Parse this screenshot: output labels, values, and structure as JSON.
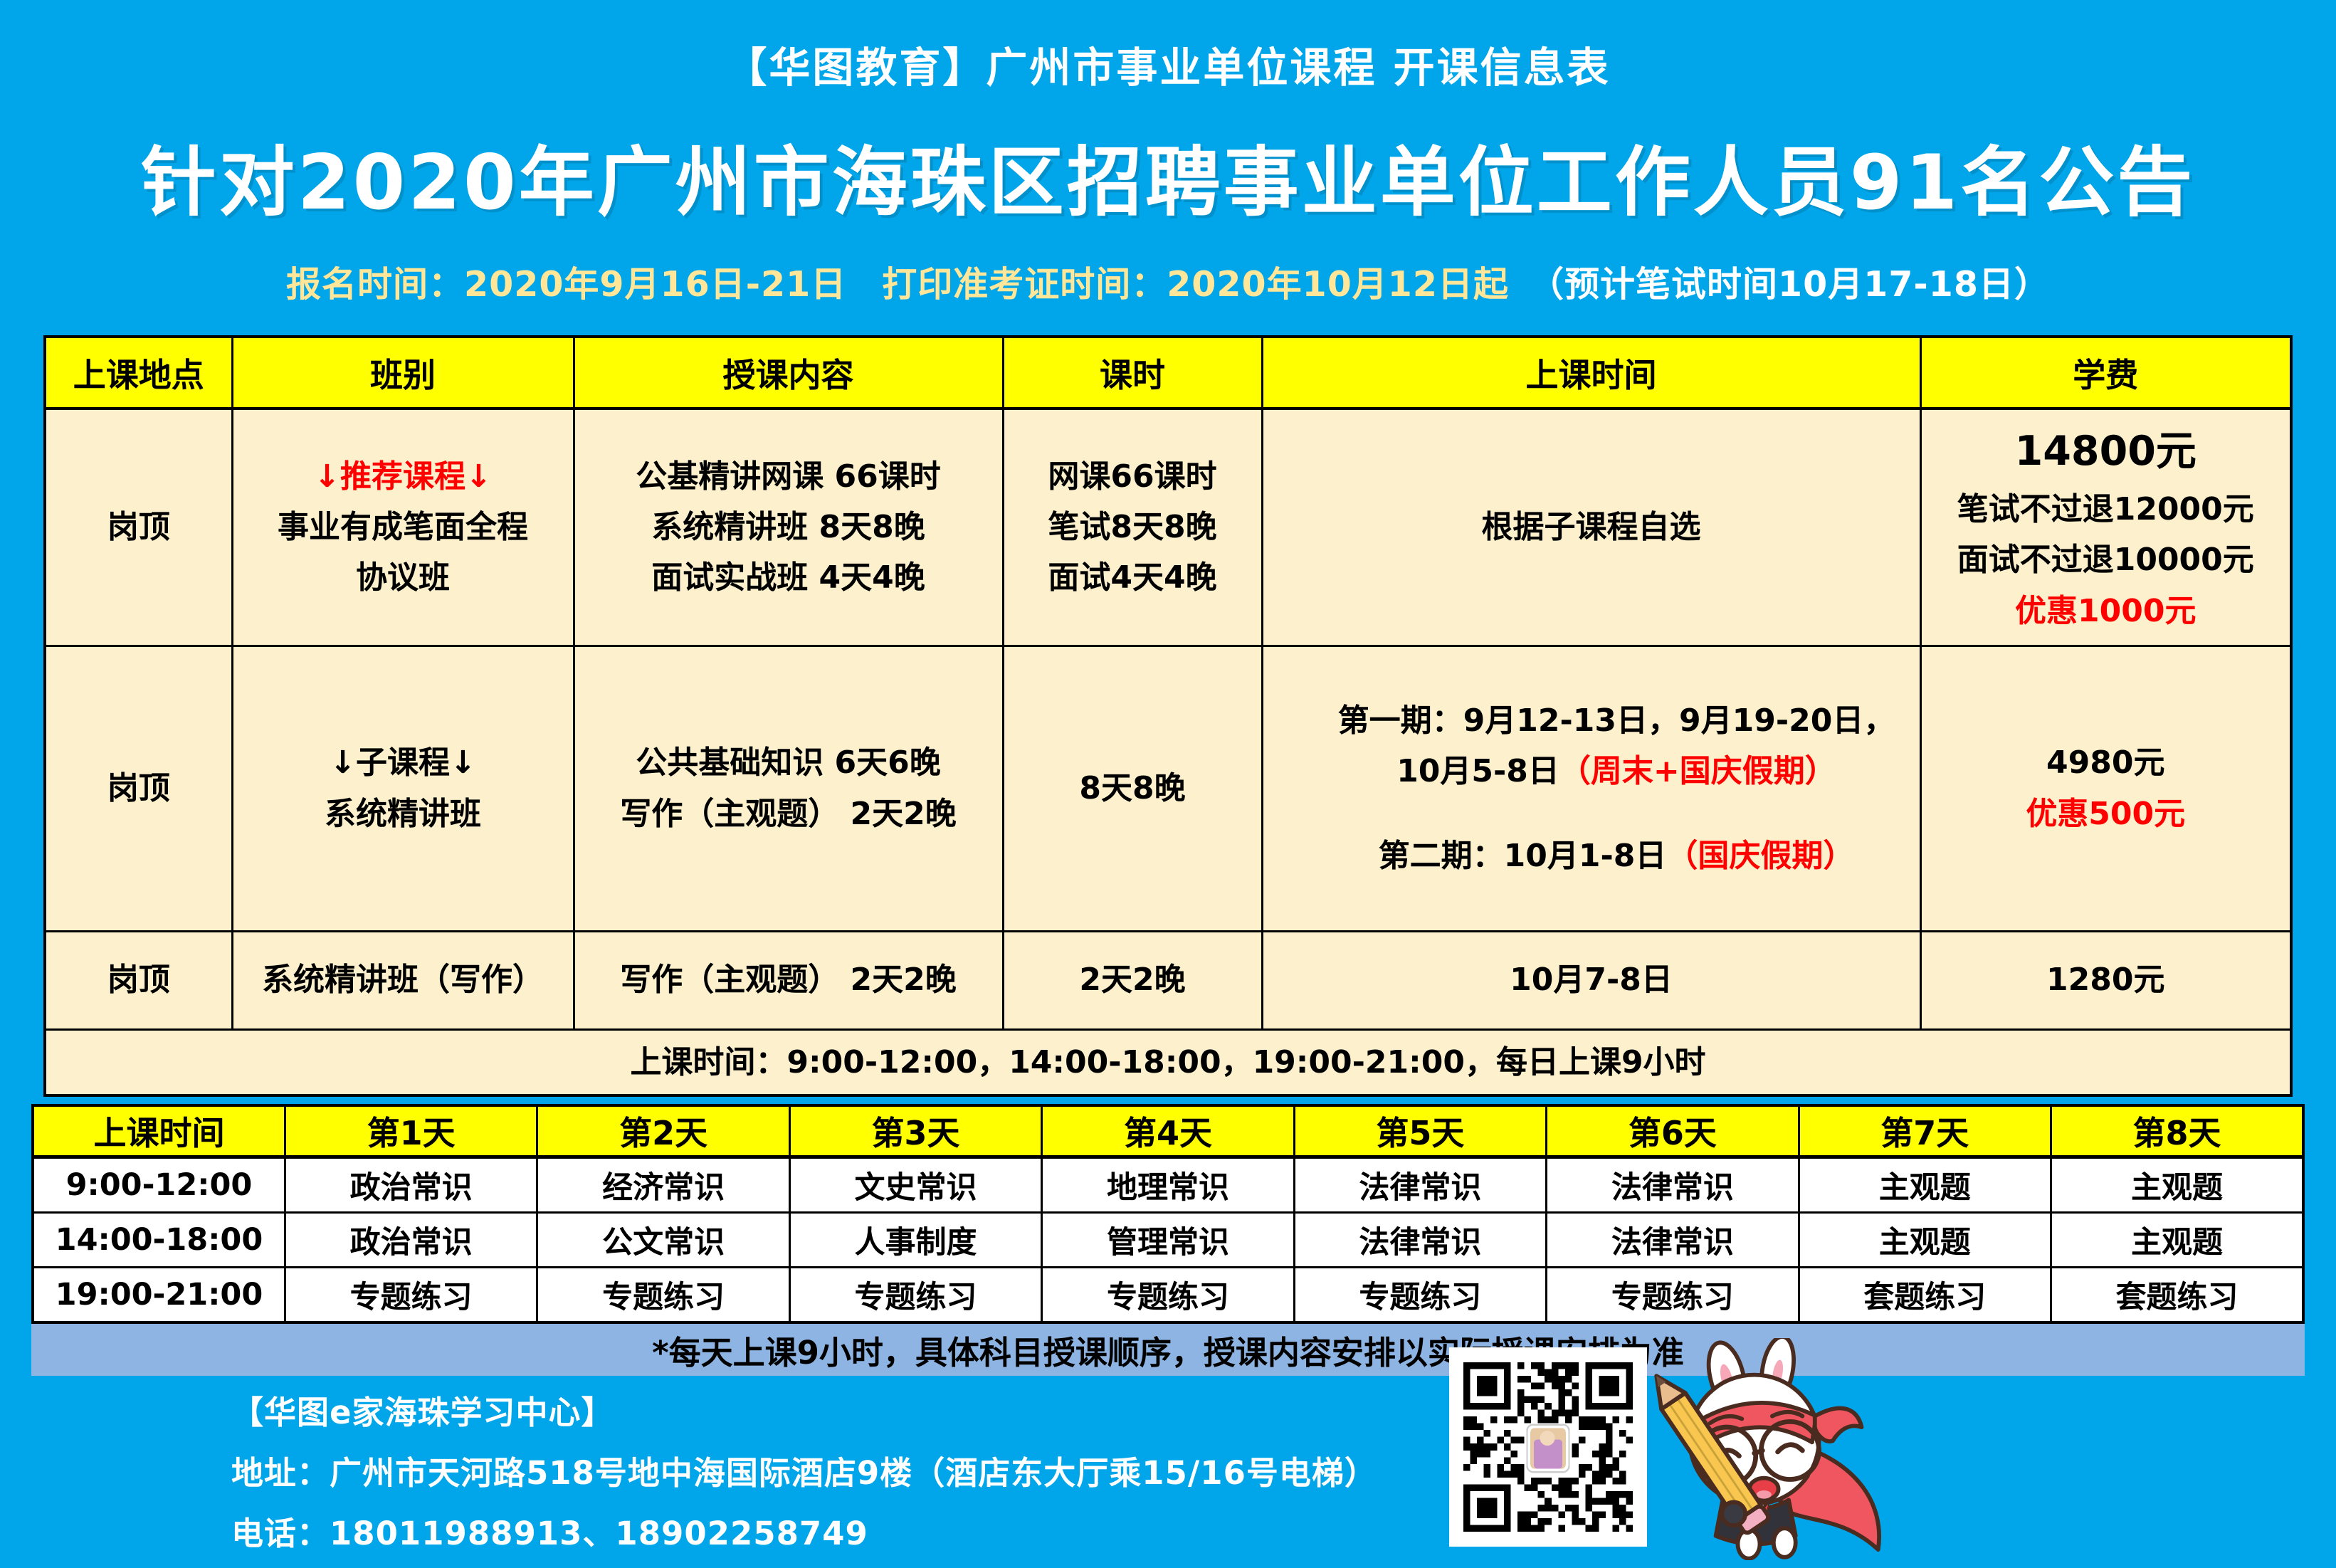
{
  "header": {
    "title_small": "【华图教育】广州市事业单位课程 开课信息表",
    "title_main": "针对2020年广州市海珠区招聘事业单位工作人员91名公告",
    "subtitle_main": "报名时间：2020年9月16日-21日　打印准考证时间：2020年10月12日起",
    "subtitle_note": "（预计笔试时间10月17-18日）"
  },
  "course_table": {
    "headers": [
      "上课地点",
      "班别",
      "授课内容",
      "课时",
      "上课时间",
      "学费"
    ],
    "row1": {
      "location": "岗顶",
      "class_line1": "↓推荐课程↓",
      "class_line2": "事业有成笔面全程",
      "class_line3": "协议班",
      "content_line1": "公基精讲网课 66课时",
      "content_line2": "系统精讲班 8天8晚",
      "content_line3": "面试实战班 4天4晚",
      "hours_line1": "网课66课时",
      "hours_line2": "笔试8天8晚",
      "hours_line3": "面试4天4晚",
      "time": "根据子课程自选",
      "fee_line1": "14800元",
      "fee_line2": "笔试不过退12000元",
      "fee_line3": "面试不过退10000元",
      "fee_line4": "优惠1000元"
    },
    "row2": {
      "location": "岗顶",
      "class_line1": "↓子课程↓",
      "class_line2": "系统精讲班",
      "content_line1": "公共基础知识 6天6晚",
      "content_line2": "写作（主观题） 2天2晚",
      "hours": "8天8晚",
      "time_line1": "第一期：9月12-13日，9月19-20日，",
      "time_line2_black": "10月5-8日",
      "time_line2_red": "（周末+国庆假期）",
      "time_line3_black": "第二期：10月1-8日",
      "time_line3_red": "（国庆假期）",
      "fee_line1": "4980元",
      "fee_line2": "优惠500元"
    },
    "row3": {
      "location": "岗顶",
      "class": "系统精讲班（写作）",
      "content": "写作（主观题） 2天2晚",
      "hours": "2天2晚",
      "time": "10月7-8日",
      "fee": "1280元"
    },
    "note_row": "上课时间：9:00-12:00，14:00-18:00，19:00-21:00，每日上课9小时"
  },
  "schedule_table": {
    "headers": [
      "上课时间",
      "第1天",
      "第2天",
      "第3天",
      "第4天",
      "第5天",
      "第6天",
      "第7天",
      "第8天"
    ],
    "rows": [
      {
        "time": "9:00-12:00",
        "cells": [
          "政治常识",
          "经济常识",
          "文史常识",
          "地理常识",
          "法律常识",
          "法律常识",
          "主观题",
          "主观题"
        ]
      },
      {
        "time": "14:00-18:00",
        "cells": [
          "政治常识",
          "公文常识",
          "人事制度",
          "管理常识",
          "法律常识",
          "法律常识",
          "主观题",
          "主观题"
        ]
      },
      {
        "time": "19:00-21:00",
        "cells": [
          "专题练习",
          "专题练习",
          "专题练习",
          "专题练习",
          "专题练习",
          "专题练习",
          "套题练习",
          "套题练习"
        ]
      }
    ]
  },
  "banner_note": "*每天上课9小时，具体科目授课顺序，授课内容安排以实际授课安排为准",
  "footer": {
    "center_name": "【华图e家海珠学习中心】",
    "address": "地址：广州市天河路518号地中海国际酒店9楼（酒店东大厅乘15/16号电梯）",
    "phone": "电话：18011988913、18902258749"
  },
  "icons": {
    "qr_code": "qr-code",
    "mascot": "rabbit-mascot"
  },
  "colors": {
    "background_blue": "#00a6e9",
    "table_header_yellow": "#ffff00",
    "cell_cream": "#fcf0cd",
    "subtitle_cream": "#ffe699",
    "accent_red": "#fe0000",
    "banner_blue": "#8db4e2"
  }
}
